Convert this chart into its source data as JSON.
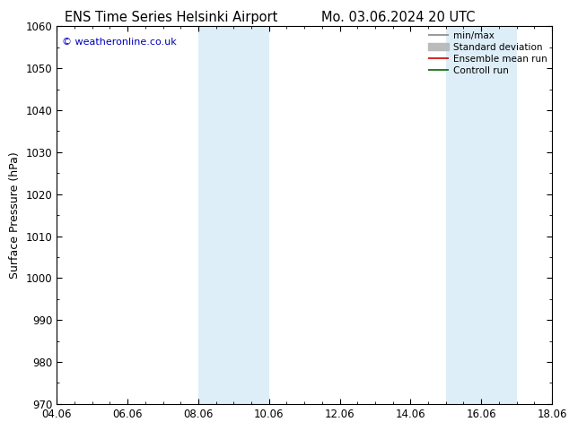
{
  "title_left": "ENS Time Series Helsinki Airport",
  "title_right": "Mo. 03.06.2024 20 UTC",
  "ylabel": "Surface Pressure (hPa)",
  "ylim": [
    970,
    1060
  ],
  "yticks": [
    970,
    980,
    990,
    1000,
    1010,
    1020,
    1030,
    1040,
    1050,
    1060
  ],
  "xticks_labels": [
    "04.06",
    "06.06",
    "08.06",
    "10.06",
    "12.06",
    "14.06",
    "16.06",
    "18.06"
  ],
  "xtick_positions": [
    0,
    2,
    4,
    6,
    8,
    10,
    12,
    14
  ],
  "xlim": [
    0,
    14
  ],
  "shaded_bands": [
    {
      "x_start": 4.0,
      "x_end": 5.33
    },
    {
      "x_start": 5.66,
      "x_end": 6.0
    },
    {
      "x_start": 11.0,
      "x_end": 12.0
    },
    {
      "x_start": 12.33,
      "x_end": 13.0
    }
  ],
  "shaded_bands2": [
    {
      "x_start": 4.0,
      "x_end": 6.0
    },
    {
      "x_start": 11.0,
      "x_end": 13.0
    }
  ],
  "shaded_color": "#ddeef8",
  "watermark": "© weatheronline.co.uk",
  "watermark_color": "#0000bb",
  "legend_entries": [
    {
      "label": "min/max",
      "color": "#888888",
      "lw": 1.2,
      "type": "line"
    },
    {
      "label": "Standard deviation",
      "color": "#bbbbbb",
      "lw": 8,
      "type": "band"
    },
    {
      "label": "Ensemble mean run",
      "color": "#cc0000",
      "lw": 1.2,
      "type": "line"
    },
    {
      "label": "Controll run",
      "color": "#006600",
      "lw": 1.2,
      "type": "line"
    }
  ],
  "bg_color": "#ffffff",
  "title_fontsize": 10.5,
  "axis_label_fontsize": 9,
  "tick_fontsize": 8.5
}
